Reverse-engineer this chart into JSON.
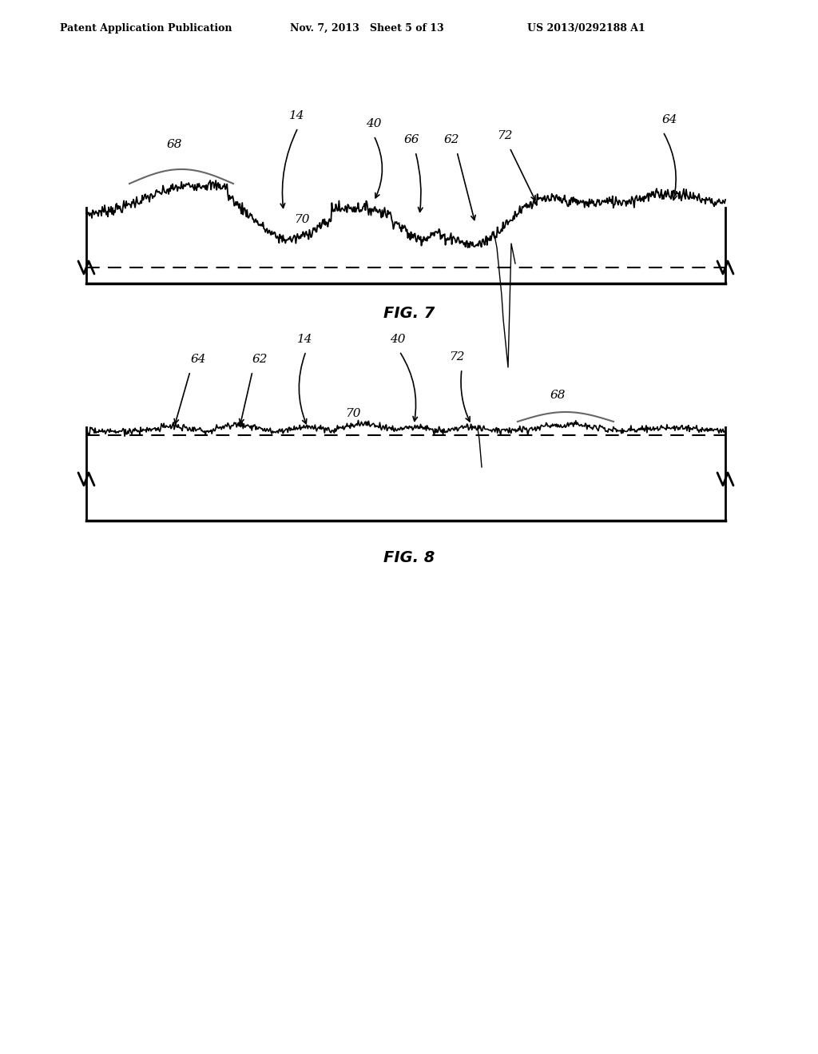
{
  "header_left": "Patent Application Publication",
  "header_mid": "Nov. 7, 2013   Sheet 5 of 13",
  "header_right": "US 2013/0292188 A1",
  "fig7_label": "FIG. 7",
  "fig8_label": "FIG. 8",
  "background_color": "#ffffff",
  "line_color": "#000000"
}
